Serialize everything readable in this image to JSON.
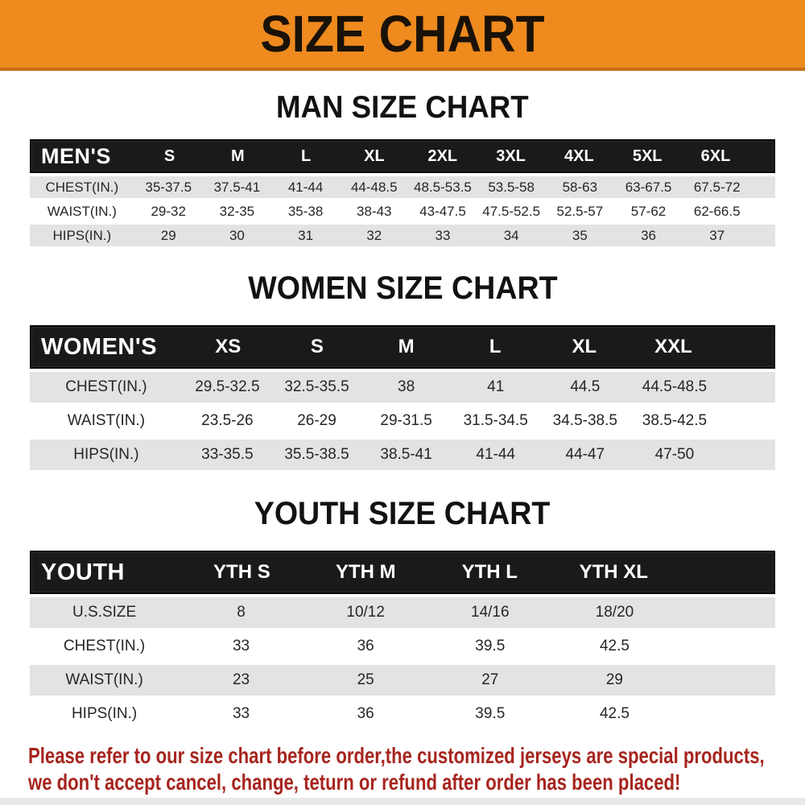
{
  "banner": {
    "title": "SIZE CHART"
  },
  "sections": [
    {
      "heading": "MAN SIZE CHART",
      "header_label": "MEN'S",
      "columns": [
        "S",
        "M",
        "L",
        "XL",
        "2XL",
        "3XL",
        "4XL",
        "5XL",
        "6XL"
      ],
      "rows": [
        {
          "label": "CHEST(IN.)",
          "values": [
            "35-37.5",
            "37.5-41",
            "41-44",
            "44-48.5",
            "48.5-53.5",
            "53.5-58",
            "58-63",
            "63-67.5",
            "67.5-72"
          ]
        },
        {
          "label": "WAIST(IN.)",
          "values": [
            "29-32",
            "32-35",
            "35-38",
            "38-43",
            "43-47.5",
            "47.5-52.5",
            "52.5-57",
            "57-62",
            "62-66.5"
          ]
        },
        {
          "label": "HIPS(IN.)",
          "values": [
            "29",
            "30",
            "31",
            "32",
            "33",
            "34",
            "35",
            "36",
            "37"
          ]
        }
      ]
    },
    {
      "heading": "WOMEN SIZE CHART",
      "header_label": "WOMEN'S",
      "columns": [
        "XS",
        "S",
        "M",
        "L",
        "XL",
        "XXL"
      ],
      "rows": [
        {
          "label": "CHEST(IN.)",
          "values": [
            "29.5-32.5",
            "32.5-35.5",
            "38",
            "41",
            "44.5",
            "44.5-48.5"
          ]
        },
        {
          "label": "WAIST(IN.)",
          "values": [
            "23.5-26",
            "26-29",
            "29-31.5",
            "31.5-34.5",
            "34.5-38.5",
            "38.5-42.5"
          ]
        },
        {
          "label": "HIPS(IN.)",
          "values": [
            "33-35.5",
            "35.5-38.5",
            "38.5-41",
            "41-44",
            "44-47",
            "47-50"
          ]
        }
      ]
    },
    {
      "heading": "YOUTH SIZE CHART",
      "header_label": "YOUTH",
      "columns": [
        "YTH S",
        "YTH M",
        "YTH L",
        "YTH XL"
      ],
      "rows": [
        {
          "label": "U.S.SIZE",
          "values": [
            "8",
            "10/12",
            "14/16",
            "18/20"
          ]
        },
        {
          "label": "CHEST(IN.)",
          "values": [
            "33",
            "36",
            "39.5",
            "42.5"
          ]
        },
        {
          "label": "WAIST(IN.)",
          "values": [
            "23",
            "25",
            "27",
            "29"
          ]
        },
        {
          "label": "HIPS(IN.)",
          "values": [
            "33",
            "36",
            "39.5",
            "42.5"
          ]
        }
      ]
    }
  ],
  "footer": {
    "line1": "Please refer to our size chart before order,the customized jerseys are special products,",
    "line2": "we don't accept cancel, change, teturn or refund after order has been placed!"
  },
  "colors": {
    "banner_bg": "#EE8A1E",
    "banner_edge": "#C96F15",
    "banner_text": "#1A1208",
    "header_bg": "#1A1A1A",
    "stripe": "#E3E3E3",
    "footer_red": "#A6251E"
  }
}
